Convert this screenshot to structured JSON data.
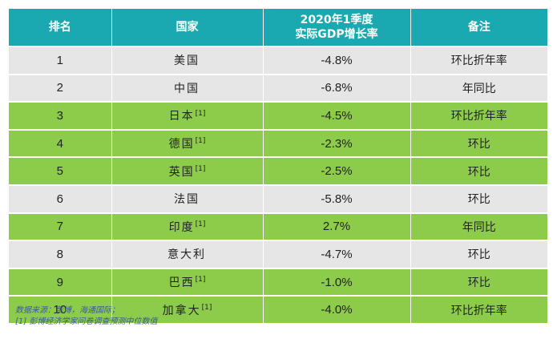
{
  "header": {
    "rank": "排名",
    "country": "国家",
    "gdp_line1": "2020年1季度",
    "gdp_line2": "实际GDP增长率",
    "note": "备注"
  },
  "rows": [
    {
      "rank": "1",
      "country": "美国",
      "ref": "",
      "gdp": "-4.8%",
      "note": "环比折年率",
      "color": "gray"
    },
    {
      "rank": "2",
      "country": "中国",
      "ref": "",
      "gdp": "-6.8%",
      "note": "年同比",
      "color": "gray"
    },
    {
      "rank": "3",
      "country": "日本",
      "ref": "[1]",
      "gdp": "-4.5%",
      "note": "环比折年率",
      "color": "green"
    },
    {
      "rank": "4",
      "country": "德国",
      "ref": "[1]",
      "gdp": "-2.3%",
      "note": "环比",
      "color": "green"
    },
    {
      "rank": "5",
      "country": "英国",
      "ref": "[1]",
      "gdp": "-2.5%",
      "note": "环比",
      "color": "green"
    },
    {
      "rank": "6",
      "country": "法国",
      "ref": "",
      "gdp": "-5.8%",
      "note": "环比",
      "color": "gray"
    },
    {
      "rank": "7",
      "country": "印度",
      "ref": "[1]",
      "gdp": "2.7%",
      "note": "年同比",
      "color": "green"
    },
    {
      "rank": "8",
      "country": "意大利",
      "ref": "",
      "gdp": "-4.7%",
      "note": "环比",
      "color": "gray"
    },
    {
      "rank": "9",
      "country": "巴西",
      "ref": "[1]",
      "gdp": "-1.0%",
      "note": "环比",
      "color": "green"
    },
    {
      "rank": "10",
      "country": "加拿大",
      "ref": "[1]",
      "gdp": "-4.0%",
      "note": "环比折年率",
      "color": "green"
    }
  ],
  "footnote": {
    "source": "数据来源：彭博，海通国际；",
    "note1": "[1] 彭博经济学家问卷调查预测中位数值"
  },
  "colors": {
    "header_bg": "#1aa9b0",
    "gray_row": "#e6e6e6",
    "green_row": "#8ccc4a",
    "footnote_text": "#3a5a9c"
  }
}
